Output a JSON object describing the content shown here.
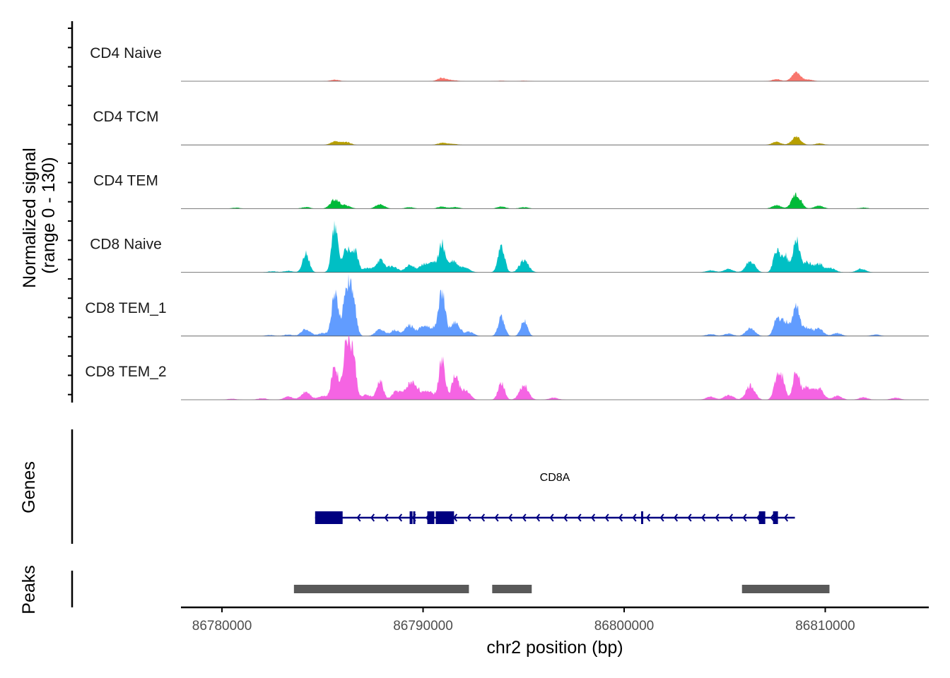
{
  "chart_data": {
    "type": "area",
    "title": "",
    "ylabel": "Normalized signal\n(range 0 - 130)",
    "ylabel_lines": [
      "Normalized signal",
      "(range 0 - 130)"
    ],
    "xlabel": "chr2 position (bp)",
    "ylim": [
      0,
      130
    ],
    "xlim": [
      86777960,
      86815150
    ],
    "x_ticks": [
      86780000,
      86790000,
      86800000,
      86810000
    ],
    "x_tick_labels": [
      "86780000",
      "86790000",
      "86800000",
      "86810000"
    ],
    "tracks": [
      {
        "name": "CD4 Naive",
        "color": "#F8766D",
        "peaks": [
          [
            86785614,
            3
          ],
          [
            86790947,
            7
          ],
          [
            86791500,
            2
          ],
          [
            86793895,
            1
          ],
          [
            86795018,
            1
          ],
          [
            86807579,
            4
          ],
          [
            86808561,
            17
          ],
          [
            86809200,
            3
          ]
        ]
      },
      {
        "name": "CD4 TCM",
        "color": "#B79F00",
        "peaks": [
          [
            86785614,
            7
          ],
          [
            86786175,
            6
          ],
          [
            86790947,
            4
          ],
          [
            86791500,
            2
          ],
          [
            86807579,
            6
          ],
          [
            86808561,
            16
          ],
          [
            86809700,
            3
          ]
        ]
      },
      {
        "name": "CD4 TEM",
        "color": "#00BA38",
        "peaks": [
          [
            86780700,
            2
          ],
          [
            86784175,
            3
          ],
          [
            86785614,
            19
          ],
          [
            86786175,
            6
          ],
          [
            86787860,
            9
          ],
          [
            86789333,
            3
          ],
          [
            86790947,
            4
          ],
          [
            86791600,
            3
          ],
          [
            86793895,
            4
          ],
          [
            86795018,
            3
          ],
          [
            86807579,
            7
          ],
          [
            86808561,
            30
          ],
          [
            86809684,
            6
          ],
          [
            86811900,
            2
          ]
        ]
      },
      {
        "name": "CD8 Naive",
        "color": "#00BFC4",
        "peaks": [
          [
            86782500,
            2
          ],
          [
            86783300,
            3
          ],
          [
            86784175,
            40
          ],
          [
            86785614,
            91
          ],
          [
            86786175,
            50
          ],
          [
            86786600,
            43
          ],
          [
            86787200,
            8
          ],
          [
            86787860,
            25
          ],
          [
            86788500,
            12
          ],
          [
            86789333,
            14
          ],
          [
            86790000,
            15
          ],
          [
            86790500,
            18
          ],
          [
            86790947,
            55
          ],
          [
            86791500,
            22
          ],
          [
            86792100,
            10
          ],
          [
            86793895,
            53
          ],
          [
            86795018,
            25
          ],
          [
            86804300,
            4
          ],
          [
            86805200,
            7
          ],
          [
            86806281,
            22
          ],
          [
            86807579,
            43
          ],
          [
            86808000,
            35
          ],
          [
            86808561,
            69
          ],
          [
            86809100,
            20
          ],
          [
            86809684,
            17
          ],
          [
            86810300,
            8
          ],
          [
            86811789,
            7
          ]
        ]
      },
      {
        "name": "CD8 TEM_1",
        "color": "#619CFF",
        "peaks": [
          [
            86782400,
            2
          ],
          [
            86783300,
            3
          ],
          [
            86784175,
            14
          ],
          [
            86785000,
            6
          ],
          [
            86785614,
            84
          ],
          [
            86786175,
            95
          ],
          [
            86786500,
            80
          ],
          [
            86787860,
            14
          ],
          [
            86788600,
            12
          ],
          [
            86789333,
            22
          ],
          [
            86790000,
            20
          ],
          [
            86790500,
            15
          ],
          [
            86790947,
            90
          ],
          [
            86791600,
            29
          ],
          [
            86792300,
            8
          ],
          [
            86793895,
            38
          ],
          [
            86795018,
            32
          ],
          [
            86804300,
            4
          ],
          [
            86805200,
            5
          ],
          [
            86806281,
            17
          ],
          [
            86807579,
            33
          ],
          [
            86808000,
            30
          ],
          [
            86808561,
            62
          ],
          [
            86809100,
            18
          ],
          [
            86809684,
            14
          ],
          [
            86810600,
            6
          ],
          [
            86812500,
            3
          ]
        ]
      },
      {
        "name": "CD8 TEM_2",
        "color": "#F564E3",
        "peaks": [
          [
            86780500,
            2
          ],
          [
            86782000,
            3
          ],
          [
            86783300,
            6
          ],
          [
            86784175,
            17
          ],
          [
            86785000,
            8
          ],
          [
            86785614,
            72
          ],
          [
            86786175,
            113
          ],
          [
            86786500,
            95
          ],
          [
            86787200,
            10
          ],
          [
            86787860,
            39
          ],
          [
            86788700,
            18
          ],
          [
            86789333,
            29
          ],
          [
            86789700,
            20
          ],
          [
            86790300,
            18
          ],
          [
            86790947,
            81
          ],
          [
            86791600,
            50
          ],
          [
            86792100,
            20
          ],
          [
            86793895,
            35
          ],
          [
            86795018,
            29
          ],
          [
            86796500,
            4
          ],
          [
            86804300,
            6
          ],
          [
            86805200,
            10
          ],
          [
            86806281,
            29
          ],
          [
            86807579,
            36
          ],
          [
            86807850,
            40
          ],
          [
            86808561,
            61
          ],
          [
            86809100,
            25
          ],
          [
            86809684,
            22
          ],
          [
            86810600,
            8
          ],
          [
            86811900,
            5
          ],
          [
            86813500,
            4
          ]
        ]
      }
    ]
  },
  "genes": {
    "axis_label": "Genes",
    "gene_name": "CD8A",
    "strand": "-",
    "color": "#000080",
    "start": 86784632,
    "end": 86808491,
    "exons": [
      [
        86784632,
        86786000,
        "cds"
      ],
      [
        86789333,
        86789474,
        "cds"
      ],
      [
        86789509,
        86789614,
        "cds"
      ],
      [
        86790210,
        86790561,
        "cds"
      ],
      [
        86790630,
        86791540,
        "cds"
      ],
      [
        86800842,
        86800947,
        "cds"
      ],
      [
        86806702,
        86807018,
        "cds"
      ],
      [
        86807404,
        86807649,
        "cds"
      ]
    ]
  },
  "peaks_track": {
    "axis_label": "Peaks",
    "color": "#595959",
    "regions": [
      [
        86783579,
        86792281
      ],
      [
        86793438,
        86795404
      ],
      [
        86805860,
        86810211
      ]
    ]
  }
}
